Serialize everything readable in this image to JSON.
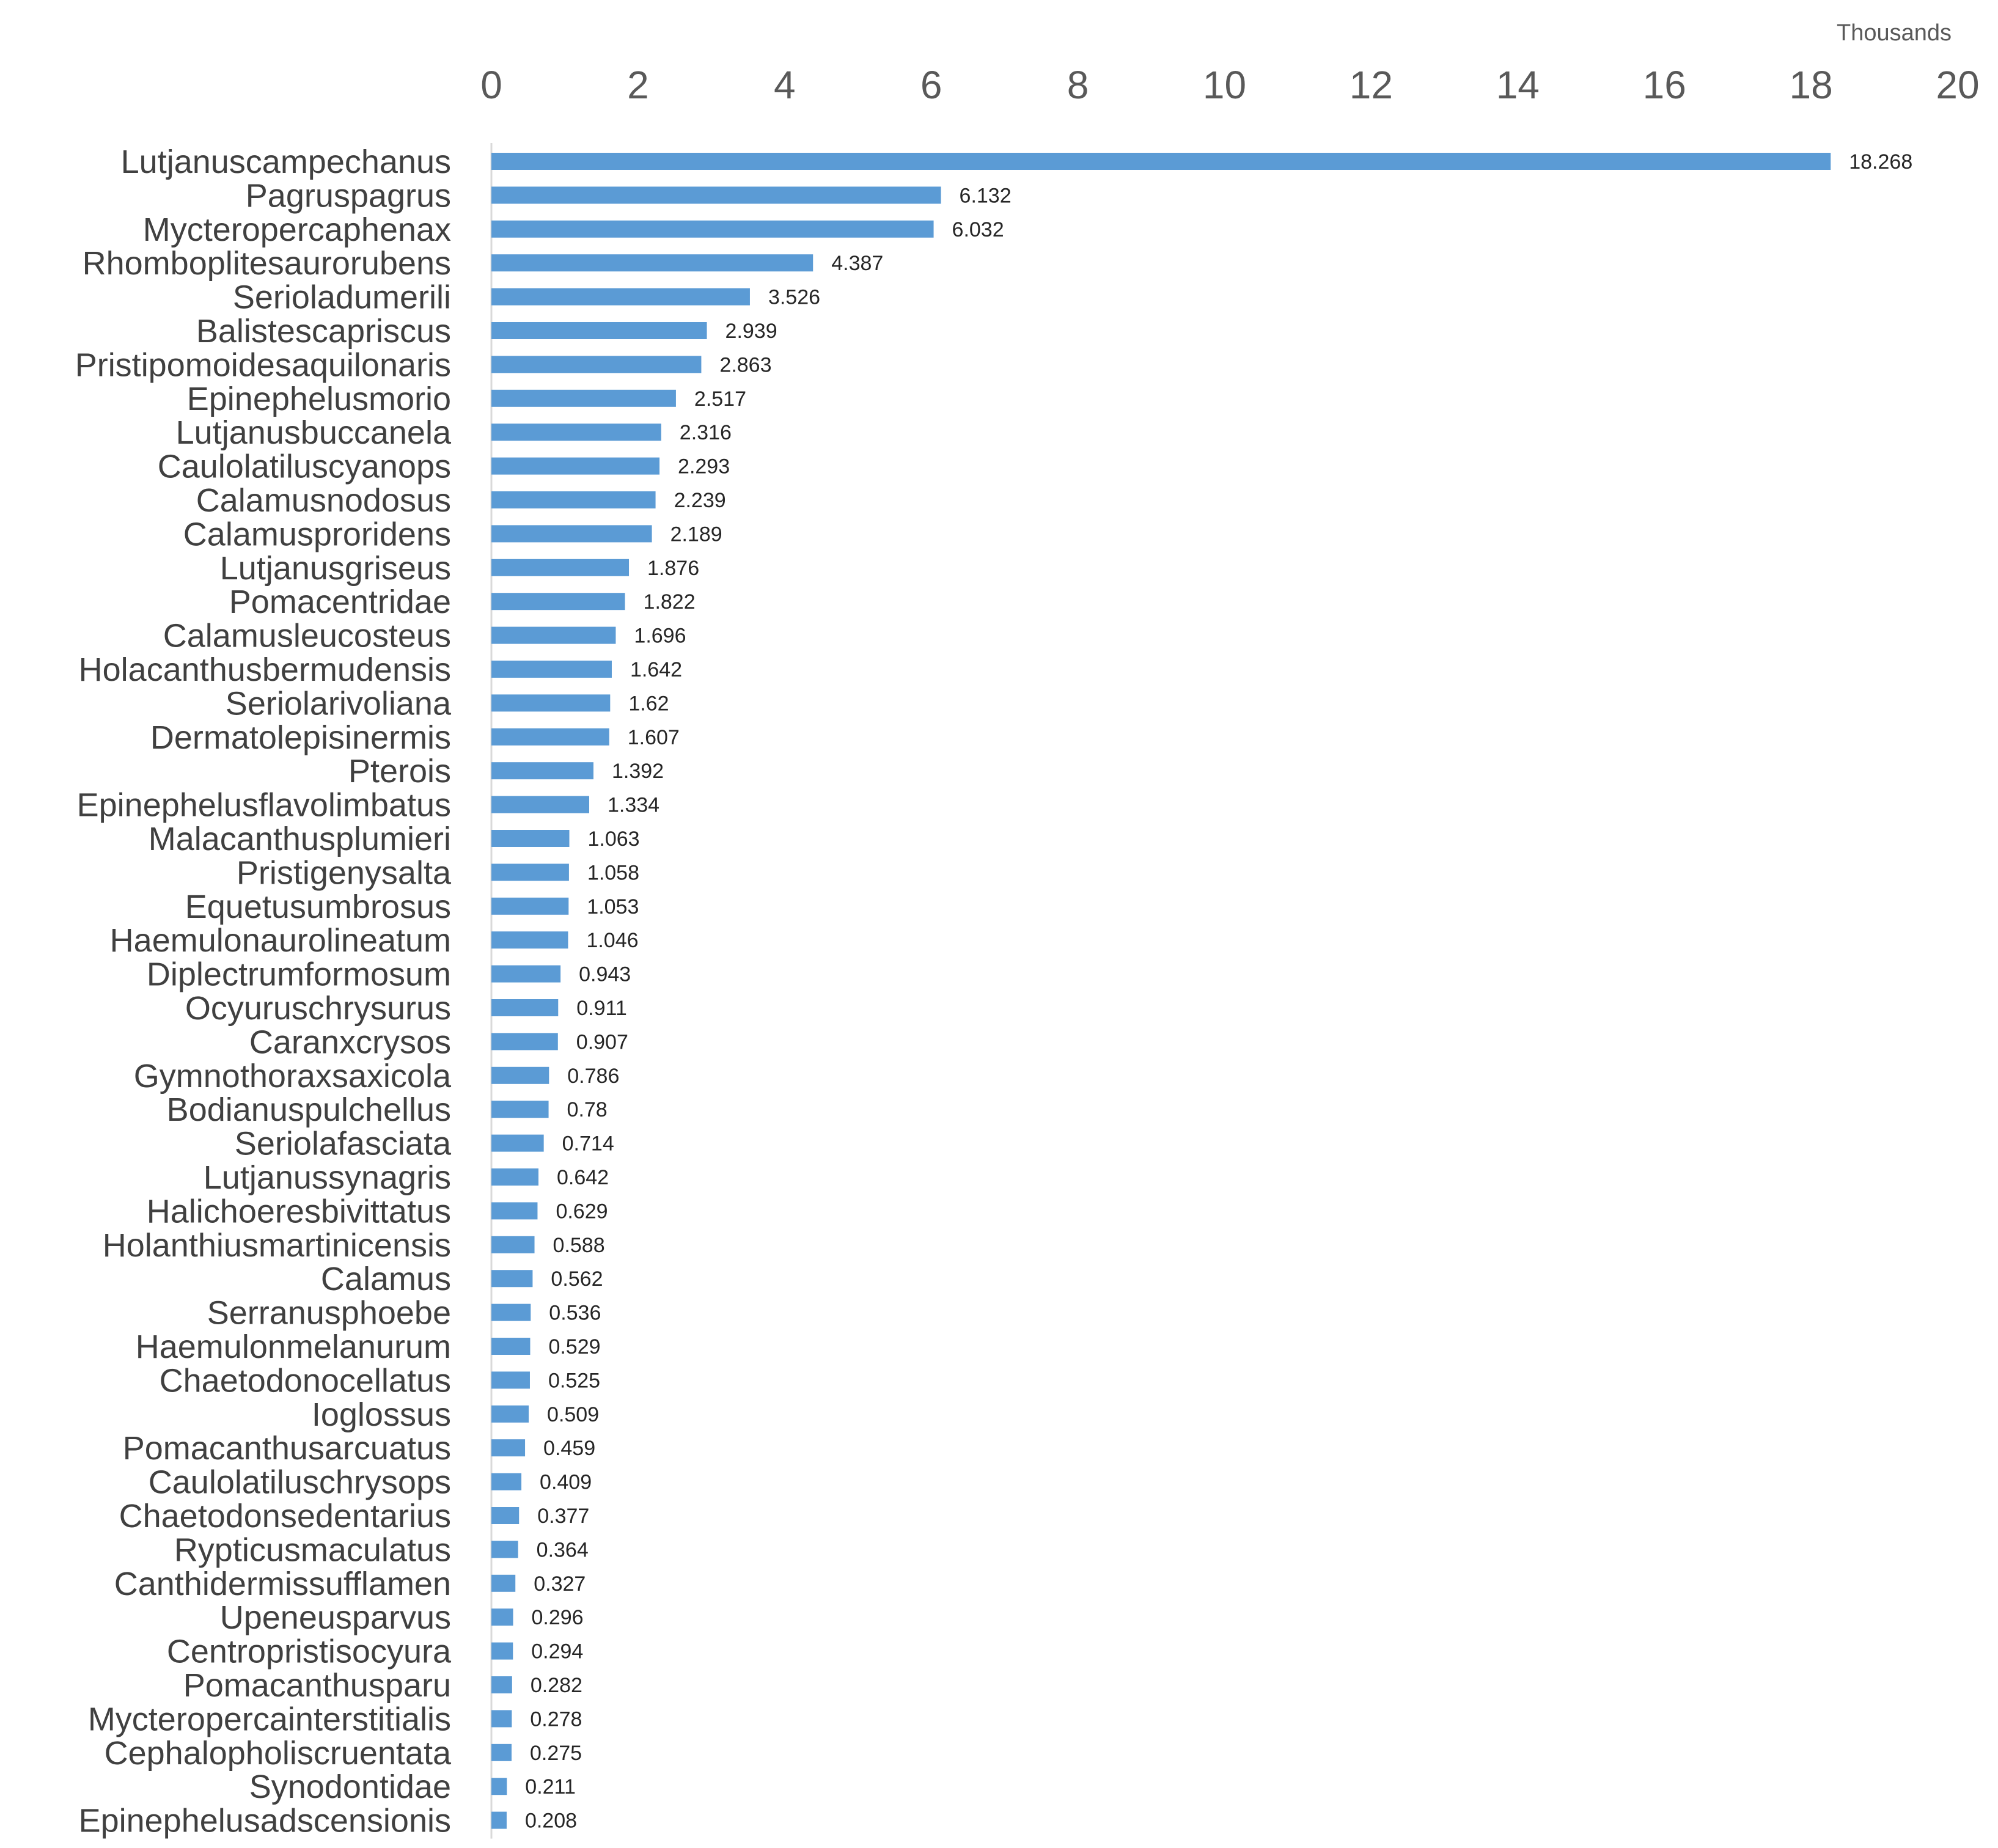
{
  "chart_data": {
    "type": "bar",
    "orientation": "horizontal",
    "title": "",
    "xlabel": "",
    "ylabel": "",
    "axis_unit_label": "Thousands",
    "x_axis_position": "top",
    "xlim": [
      0,
      20
    ],
    "x_ticks": [
      "0",
      "2",
      "4",
      "6",
      "8",
      "10",
      "12",
      "14",
      "16",
      "18",
      "20"
    ],
    "grid": false,
    "legend": "none",
    "bar_color": "#5B9BD5",
    "categories": [
      "Lutjanuscampechanus",
      "Pagruspagrus",
      "Mycteropercaphenax",
      "Rhomboplitesaurorubens",
      "Serioladumerili",
      "Balistescapriscus",
      "Pristipomoidesaquilonaris",
      "Epinephelusmorio",
      "Lutjanusbuccanela",
      "Caulolatiluscyanops",
      "Calamusnodosus",
      "Calamusproridens",
      "Lutjanusgriseus",
      "Pomacentridae",
      "Calamusleucosteus",
      "Holacanthusbermudensis",
      "Seriolarivoliana",
      "Dermatolepisinermis",
      "Pterois",
      "Epinephelusflavolimbatus",
      "Malacanthusplumieri",
      "Pristigenysalta",
      "Equetusumbrosus",
      "Haemulonaurolineatum",
      "Diplectrumformosum",
      "Ocyuruschrysurus",
      "Caranxcrysos",
      "Gymnothoraxsaxicola",
      "Bodianuspulchellus",
      "Seriolafasciata",
      "Lutjanussynagris",
      "Halichoeresbivittatus",
      "Holanthiusmartinicensis",
      "Calamus",
      "Serranusphoebe",
      "Haemulonmelanurum",
      "Chaetodonocellatus",
      "Ioglossus",
      "Pomacanthusarcuatus",
      "Caulolatiluschrysops",
      "Chaetodonsedentarius",
      "Rypticusmaculatus",
      "Canthidermissufflamen",
      "Upeneusparvus",
      "Centropristisocyura",
      "Pomacanthusparu",
      "Mycteropercainterstitialis",
      "Cephalopholiscruentata",
      "Synodontidae",
      "Epinephelusadscensionis"
    ],
    "values": [
      18.268,
      6.132,
      6.032,
      4.387,
      3.526,
      2.939,
      2.863,
      2.517,
      2.316,
      2.293,
      2.239,
      2.189,
      1.876,
      1.822,
      1.696,
      1.642,
      1.62,
      1.607,
      1.392,
      1.334,
      1.063,
      1.058,
      1.053,
      1.046,
      0.943,
      0.911,
      0.907,
      0.786,
      0.78,
      0.714,
      0.642,
      0.629,
      0.588,
      0.562,
      0.536,
      0.529,
      0.525,
      0.509,
      0.459,
      0.409,
      0.377,
      0.364,
      0.327,
      0.296,
      0.294,
      0.282,
      0.278,
      0.275,
      0.211,
      0.208
    ],
    "value_labels": [
      "18.268",
      "6.132",
      "6.032",
      "4.387",
      "3.526",
      "2.939",
      "2.863",
      "2.517",
      "2.316",
      "2.293",
      "2.239",
      "2.189",
      "1.876",
      "1.822",
      "1.696",
      "1.642",
      "1.62",
      "1.607",
      "1.392",
      "1.334",
      "1.063",
      "1.058",
      "1.053",
      "1.046",
      "0.943",
      "0.911",
      "0.907",
      "0.786",
      "0.78",
      "0.714",
      "0.642",
      "0.629",
      "0.588",
      "0.562",
      "0.536",
      "0.529",
      "0.525",
      "0.509",
      "0.459",
      "0.409",
      "0.377",
      "0.364",
      "0.327",
      "0.296",
      "0.294",
      "0.282",
      "0.278",
      "0.275",
      "0.211",
      "0.208"
    ]
  }
}
